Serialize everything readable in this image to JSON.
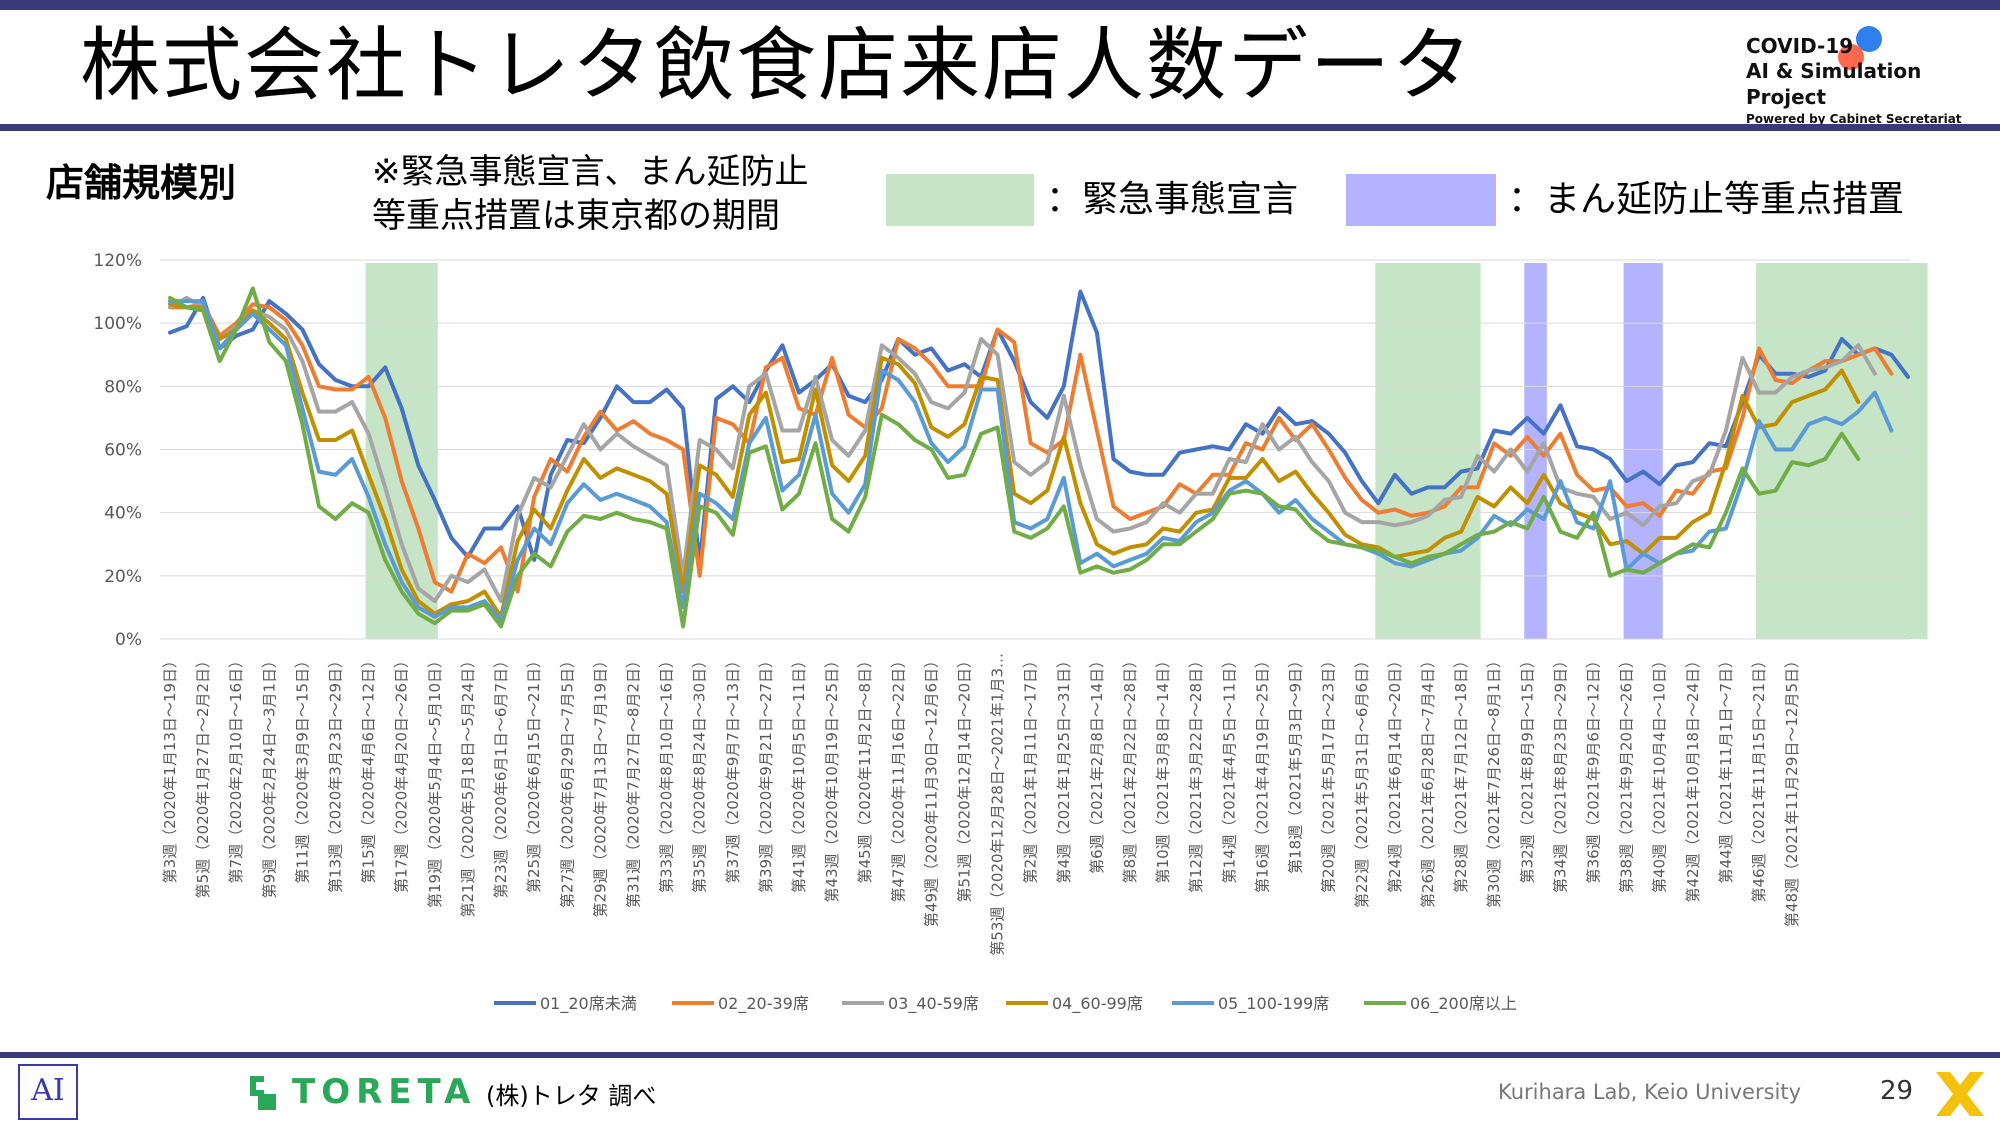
{
  "header": {
    "title": "株式会社トレタ飲食店来店人数データ",
    "logo_line1": "COVID-19",
    "logo_line2": "AI & Simulation Project",
    "logo_line3": "Powered by Cabinet Secretariat"
  },
  "subtitle": "店舗規模別",
  "note_line1": "※緊急事態宣言、まん延防止",
  "note_line2": "等重点措置は東京都の期間",
  "legend_boxes": {
    "emergency": "：緊急事態宣言",
    "priority": "：まん延防止等重点措置",
    "emergency_color": "#c6e5c6",
    "priority_color": "#b3b3ff"
  },
  "footer": {
    "company": "TORETA",
    "source": "(株)トレタ 調べ",
    "credit": "Kurihara Lab, Keio University",
    "page": "29"
  },
  "chart_data": {
    "type": "line",
    "ylim": [
      0,
      1.2
    ],
    "yticks": [
      "0%",
      "20%",
      "40%",
      "60%",
      "80%",
      "100%",
      "120%"
    ],
    "grid": true,
    "legend_position": "bottom",
    "x_labels": [
      "第3週（2020年1月13日～19日）",
      "第5週（2020年1月27日～2月2日）",
      "第7週（2020年2月10日～16日）",
      "第9週（2020年2月24日～3月1日）",
      "第11週（2020年3月9日～15日）",
      "第13週（2020年3月23日～29日）",
      "第15週（2020年4月6日～12日）",
      "第17週（2020年4月20日～26日）",
      "第19週（2020年5月4日～5月10日）",
      "第21週（2020年5月18日～5月24日）",
      "第23週（2020年6月1日～6月7日）",
      "第25週（2020年6月15日～21日）",
      "第27週（2020年6月29日～7月5日）",
      "第29週（2020年7月13日～7月19日）",
      "第31週（2020年7月27日～8月2日）",
      "第33週（2020年8月10日～16日）",
      "第35週（2020年8月24日～30日）",
      "第37週（2020年9月7日～13日）",
      "第39週（2020年9月21日～27日）",
      "第41週（2020年10月5日～11日）",
      "第43週（2020年10月19日～25日）",
      "第45週（2020年11月2日～8日）",
      "第47週（2020年11月16日～22日）",
      "第49週（2020年11月30日～12月6日）",
      "第51週（2020年12月14日～20日）",
      "第53週（2020年12月28日～2021年1月3…",
      "第2週（2021年1月11日～17日）",
      "第4週（2021年1月25日～31日）",
      "第6週（2021年2月8日～14日）",
      "第8週（2021年2月22日～28日）",
      "第10週（2021年3月8日～14日）",
      "第12週（2021年3月22日～28日）",
      "第14週（2021年4月5日～11日）",
      "第16週（2021年4月19日～25日）",
      "第18週（2021年5月3日～9日）",
      "第20週（2021年5月17日～23日）",
      "第22週（2021年5月31日～6月6日）",
      "第24週（2021年6月14日～20日）",
      "第26週（2021年6月28日～7月4日）",
      "第28週（2021年7月12日～18日）",
      "第30週（2021年7月26日～8月1日）",
      "第32週（2021年8月9日～15日）",
      "第34週（2021年8月23日～29日）",
      "第36週（2021年9月6日～12日）",
      "第38週（2021年9月20日～26日）",
      "第40週（2021年10月4日～10日）",
      "第42週（2021年10月18日～24日）",
      "第44週（2021年11月1日～7日）",
      "第46週（2021年11月15日～21日）",
      "第48週（2021年11月29日～12月5日）"
    ],
    "series": [
      {
        "name": "01_20席未満",
        "color": "#4472c4",
        "values": [
          0.97,
          0.99,
          1.08,
          0.92,
          0.96,
          0.98,
          1.07,
          1.03,
          0.98,
          0.87,
          0.82,
          0.8,
          0.8,
          0.86,
          0.73,
          0.55,
          0.44,
          0.32,
          0.26,
          0.35,
          0.35,
          0.42,
          0.25,
          0.52,
          0.63,
          0.62,
          0.7,
          0.8,
          0.75,
          0.75,
          0.79,
          0.73,
          0.24,
          0.76,
          0.8,
          0.75,
          0.85,
          0.93,
          0.78,
          0.82,
          0.87,
          0.77,
          0.75,
          0.82,
          0.95,
          0.9,
          0.92,
          0.85,
          0.87,
          0.83,
          0.98,
          0.88,
          0.75,
          0.7,
          0.8,
          1.1,
          0.97,
          0.57,
          0.53,
          0.52,
          0.52,
          0.59,
          0.6,
          0.61,
          0.6,
          0.68,
          0.65,
          0.73,
          0.68,
          0.69,
          0.65,
          0.59,
          0.5,
          0.43,
          0.52,
          0.46,
          0.48,
          0.48,
          0.53,
          0.54,
          0.66,
          0.65,
          0.7,
          0.65,
          0.74,
          0.61,
          0.6,
          0.57,
          0.5,
          0.53,
          0.49,
          0.55,
          0.56,
          0.62,
          0.61,
          0.75,
          0.9,
          0.84,
          0.84,
          0.83,
          0.85,
          0.95,
          0.9,
          0.92,
          0.9,
          0.83
        ]
      },
      {
        "name": "02_20-39席",
        "color": "#ed7d31",
        "values": [
          1.05,
          1.05,
          1.06,
          0.96,
          1.0,
          1.06,
          1.05,
          1.01,
          0.93,
          0.8,
          0.79,
          0.79,
          0.83,
          0.7,
          0.5,
          0.35,
          0.18,
          0.15,
          0.27,
          0.24,
          0.29,
          0.15,
          0.45,
          0.57,
          0.53,
          0.64,
          0.72,
          0.66,
          0.69,
          0.65,
          0.63,
          0.6,
          0.2,
          0.7,
          0.68,
          0.62,
          0.86,
          0.89,
          0.73,
          0.71,
          0.89,
          0.71,
          0.67,
          0.73,
          0.95,
          0.92,
          0.87,
          0.8,
          0.8,
          0.8,
          0.98,
          0.94,
          0.62,
          0.59,
          0.63,
          0.9,
          0.66,
          0.42,
          0.38,
          0.4,
          0.42,
          0.49,
          0.46,
          0.52,
          0.52,
          0.62,
          0.6,
          0.7,
          0.63,
          0.68,
          0.6,
          0.51,
          0.44,
          0.4,
          0.41,
          0.39,
          0.4,
          0.42,
          0.48,
          0.48,
          0.62,
          0.58,
          0.64,
          0.58,
          0.65,
          0.52,
          0.47,
          0.48,
          0.42,
          0.43,
          0.39,
          0.47,
          0.46,
          0.53,
          0.54,
          0.7,
          0.92,
          0.82,
          0.81,
          0.85,
          0.88,
          0.88,
          0.9,
          0.92,
          0.84
        ]
      },
      {
        "name": "03_40-59席",
        "color": "#a5a5a5",
        "values": [
          1.05,
          1.08,
          1.05,
          0.95,
          0.99,
          1.04,
          1.02,
          0.98,
          0.88,
          0.72,
          0.72,
          0.75,
          0.65,
          0.48,
          0.3,
          0.16,
          0.12,
          0.2,
          0.18,
          0.22,
          0.12,
          0.39,
          0.51,
          0.48,
          0.58,
          0.68,
          0.6,
          0.65,
          0.61,
          0.58,
          0.55,
          0.2,
          0.63,
          0.6,
          0.54,
          0.8,
          0.84,
          0.66,
          0.66,
          0.83,
          0.63,
          0.58,
          0.66,
          0.93,
          0.89,
          0.84,
          0.75,
          0.73,
          0.78,
          0.95,
          0.9,
          0.56,
          0.52,
          0.56,
          0.77,
          0.55,
          0.38,
          0.34,
          0.35,
          0.37,
          0.43,
          0.4,
          0.46,
          0.46,
          0.57,
          0.56,
          0.68,
          0.6,
          0.64,
          0.56,
          0.5,
          0.4,
          0.37,
          0.37,
          0.36,
          0.37,
          0.39,
          0.44,
          0.45,
          0.58,
          0.53,
          0.6,
          0.53,
          0.62,
          0.48,
          0.46,
          0.45,
          0.38,
          0.4,
          0.36,
          0.42,
          0.43,
          0.5,
          0.52,
          0.66,
          0.89,
          0.78,
          0.78,
          0.83,
          0.85,
          0.86,
          0.88,
          0.93,
          0.84
        ]
      },
      {
        "name": "04_60-99席",
        "color": "#c09000",
        "values": [
          1.06,
          1.05,
          1.05,
          0.95,
          0.98,
          1.04,
          1.0,
          0.95,
          0.78,
          0.63,
          0.63,
          0.66,
          0.52,
          0.38,
          0.22,
          0.12,
          0.08,
          0.11,
          0.12,
          0.15,
          0.07,
          0.31,
          0.41,
          0.35,
          0.47,
          0.57,
          0.51,
          0.54,
          0.52,
          0.5,
          0.46,
          0.15,
          0.55,
          0.52,
          0.45,
          0.71,
          0.78,
          0.56,
          0.57,
          0.79,
          0.55,
          0.5,
          0.58,
          0.89,
          0.87,
          0.81,
          0.67,
          0.64,
          0.68,
          0.83,
          0.82,
          0.46,
          0.43,
          0.47,
          0.64,
          0.43,
          0.3,
          0.27,
          0.29,
          0.3,
          0.35,
          0.34,
          0.4,
          0.41,
          0.51,
          0.51,
          0.57,
          0.5,
          0.53,
          0.46,
          0.4,
          0.33,
          0.3,
          0.29,
          0.26,
          0.27,
          0.28,
          0.32,
          0.34,
          0.45,
          0.42,
          0.48,
          0.43,
          0.52,
          0.43,
          0.4,
          0.38,
          0.3,
          0.31,
          0.27,
          0.32,
          0.32,
          0.37,
          0.4,
          0.56,
          0.77,
          0.67,
          0.68,
          0.75,
          0.77,
          0.79,
          0.85,
          0.75
        ]
      },
      {
        "name": "05_100-199席",
        "color": "#5b9bd5",
        "values": [
          1.07,
          1.07,
          1.07,
          0.92,
          0.98,
          1.03,
          0.98,
          0.93,
          0.73,
          0.53,
          0.52,
          0.57,
          0.45,
          0.3,
          0.18,
          0.1,
          0.07,
          0.1,
          0.1,
          0.12,
          0.06,
          0.25,
          0.35,
          0.3,
          0.43,
          0.49,
          0.44,
          0.46,
          0.44,
          0.42,
          0.37,
          0.1,
          0.46,
          0.43,
          0.38,
          0.62,
          0.7,
          0.47,
          0.52,
          0.71,
          0.46,
          0.4,
          0.49,
          0.85,
          0.82,
          0.75,
          0.62,
          0.56,
          0.61,
          0.79,
          0.79,
          0.37,
          0.35,
          0.38,
          0.51,
          0.24,
          0.27,
          0.23,
          0.25,
          0.27,
          0.32,
          0.31,
          0.37,
          0.4,
          0.47,
          0.5,
          0.46,
          0.4,
          0.44,
          0.38,
          0.34,
          0.3,
          0.29,
          0.27,
          0.24,
          0.23,
          0.25,
          0.27,
          0.28,
          0.32,
          0.39,
          0.36,
          0.41,
          0.38,
          0.5,
          0.37,
          0.35,
          0.5,
          0.22,
          0.27,
          0.24,
          0.27,
          0.28,
          0.34,
          0.35,
          0.5,
          0.69,
          0.6,
          0.6,
          0.68,
          0.7,
          0.68,
          0.72,
          0.78,
          0.66
        ]
      },
      {
        "name": "06_200席以上",
        "color": "#70ad47",
        "values": [
          1.08,
          1.05,
          1.04,
          0.88,
          0.98,
          1.11,
          0.94,
          0.88,
          0.68,
          0.42,
          0.38,
          0.43,
          0.4,
          0.25,
          0.15,
          0.08,
          0.05,
          0.09,
          0.09,
          0.11,
          0.04,
          0.2,
          0.27,
          0.23,
          0.34,
          0.39,
          0.38,
          0.4,
          0.38,
          0.37,
          0.35,
          0.04,
          0.42,
          0.4,
          0.33,
          0.59,
          0.61,
          0.41,
          0.46,
          0.62,
          0.38,
          0.34,
          0.45,
          0.71,
          0.68,
          0.63,
          0.6,
          0.51,
          0.52,
          0.65,
          0.67,
          0.34,
          0.32,
          0.35,
          0.42,
          0.21,
          0.23,
          0.21,
          0.22,
          0.25,
          0.3,
          0.3,
          0.34,
          0.38,
          0.46,
          0.47,
          0.46,
          0.42,
          0.41,
          0.35,
          0.31,
          0.3,
          0.29,
          0.28,
          0.26,
          0.24,
          0.26,
          0.27,
          0.3,
          0.33,
          0.34,
          0.37,
          0.35,
          0.45,
          0.34,
          0.32,
          0.4,
          0.2,
          0.22,
          0.21,
          0.24,
          0.27,
          0.3,
          0.29,
          0.4,
          0.54,
          0.46,
          0.47,
          0.56,
          0.55,
          0.57,
          0.65,
          0.57
        ]
      }
    ],
    "emergency_periods": [
      [
        12,
        16
      ],
      [
        73,
        79
      ],
      [
        96,
        99
      ],
      [
        99,
        106
      ]
    ],
    "priority_periods": [
      [
        82,
        83
      ],
      [
        88,
        90
      ]
    ],
    "emergency_periods_note": ""
  }
}
